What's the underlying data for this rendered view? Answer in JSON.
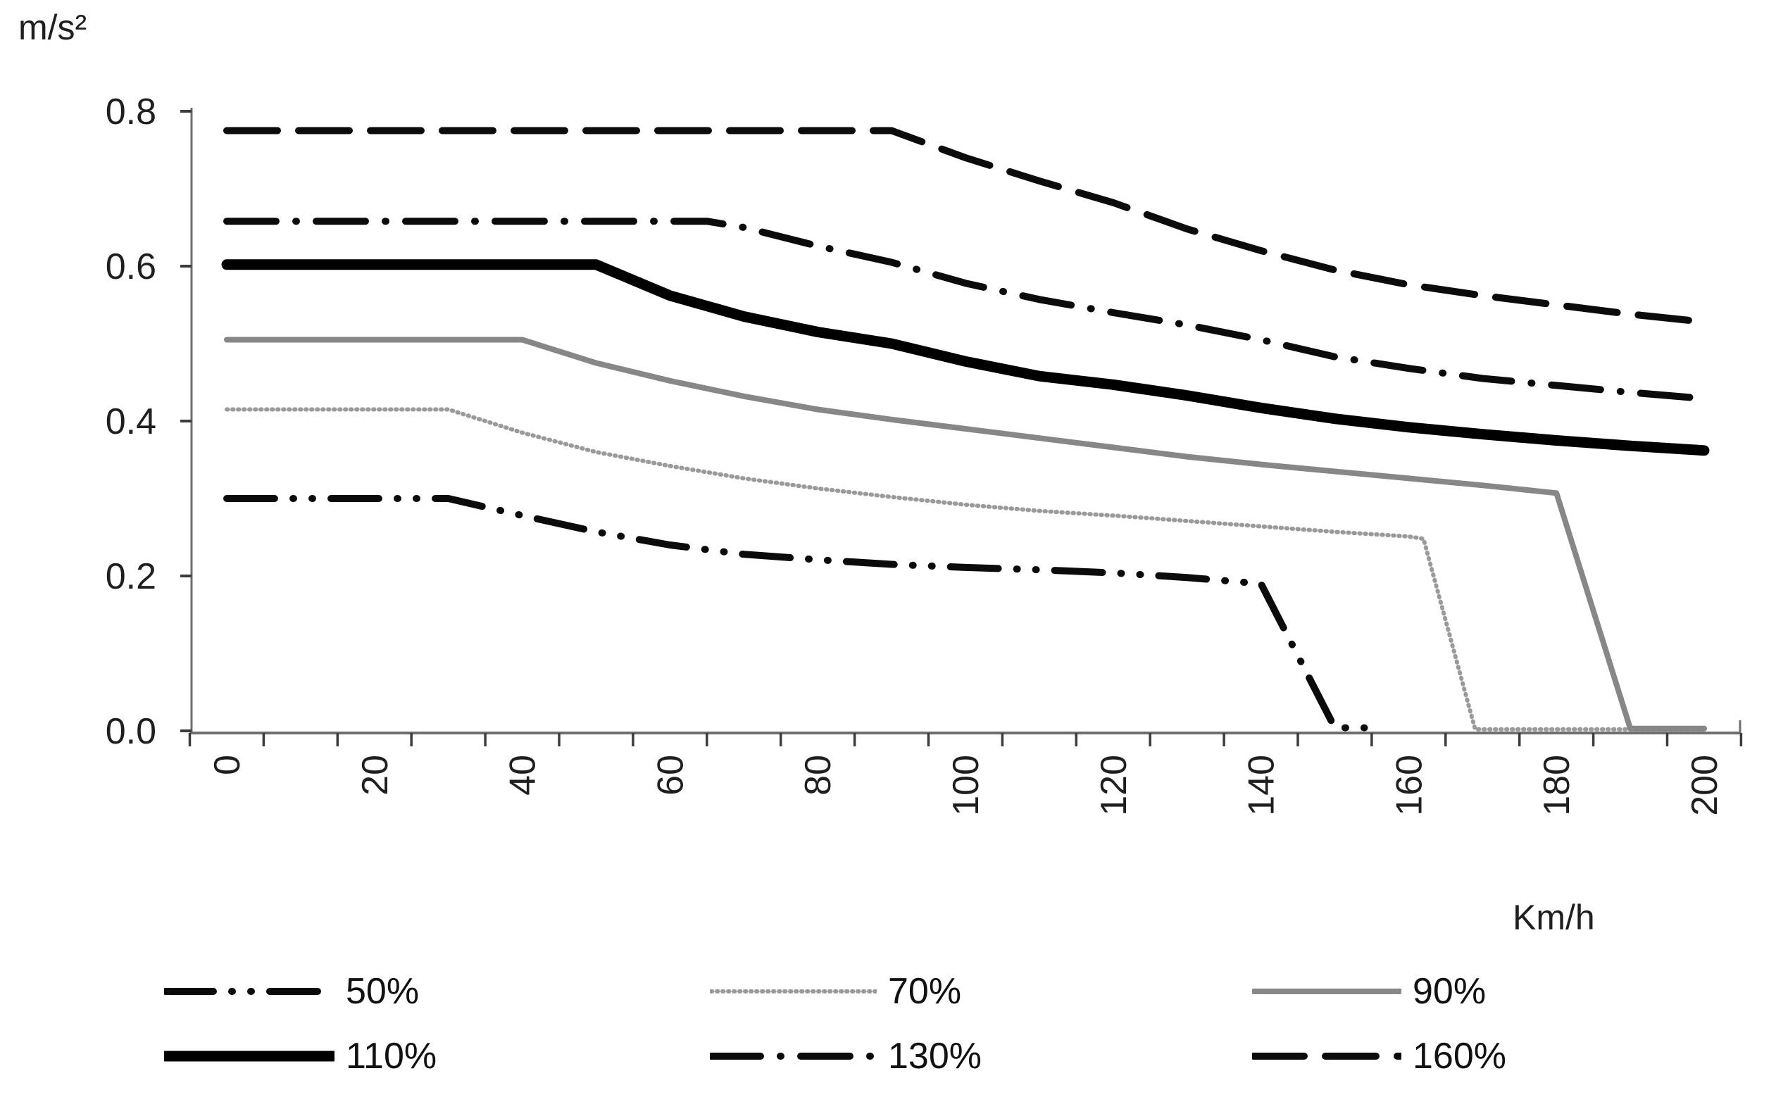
{
  "chart_data": {
    "type": "line",
    "title": "",
    "y_unit_label": "m/s²",
    "x_unit_label": "Km/h",
    "xlim": [
      0,
      200
    ],
    "ylim": [
      0.0,
      0.8
    ],
    "grid": false,
    "legend_position": "bottom",
    "x_tick_labels": [
      "0",
      "20",
      "40",
      "60",
      "80",
      "100",
      "120",
      "140",
      "160",
      "180",
      "200"
    ],
    "x_tick_values": [
      0,
      20,
      40,
      60,
      80,
      100,
      120,
      140,
      160,
      180,
      200
    ],
    "x_minor_tick_step": 10,
    "y_tick_labels": [
      "0.0",
      "0.2",
      "0.4",
      "0.6",
      "0.8"
    ],
    "y_tick_values": [
      0.0,
      0.2,
      0.4,
      0.6,
      0.8
    ],
    "series": [
      {
        "name": "50%",
        "style": "dash-dot-dot",
        "color": "#0b0b0b",
        "width": 10,
        "points": [
          [
            0,
            0.3
          ],
          [
            30,
            0.3
          ],
          [
            40,
            0.278
          ],
          [
            50,
            0.257
          ],
          [
            60,
            0.24
          ],
          [
            70,
            0.228
          ],
          [
            80,
            0.221
          ],
          [
            90,
            0.215
          ],
          [
            100,
            0.211
          ],
          [
            110,
            0.208
          ],
          [
            120,
            0.204
          ],
          [
            130,
            0.198
          ],
          [
            140,
            0.19
          ],
          [
            150,
            0.004
          ],
          [
            154,
            0.004
          ]
        ]
      },
      {
        "name": "70%",
        "style": "dotted",
        "color": "#9a9a9a",
        "width": 6,
        "points": [
          [
            0,
            0.415
          ],
          [
            30,
            0.415
          ],
          [
            40,
            0.385
          ],
          [
            50,
            0.36
          ],
          [
            60,
            0.342
          ],
          [
            70,
            0.326
          ],
          [
            80,
            0.313
          ],
          [
            90,
            0.302
          ],
          [
            100,
            0.292
          ],
          [
            110,
            0.284
          ],
          [
            120,
            0.278
          ],
          [
            130,
            0.271
          ],
          [
            140,
            0.264
          ],
          [
            150,
            0.257
          ],
          [
            160,
            0.251
          ],
          [
            162,
            0.248
          ],
          [
            169,
            0.002
          ],
          [
            200,
            0.002
          ]
        ]
      },
      {
        "name": "90%",
        "style": "solid",
        "color": "#878787",
        "width": 8,
        "points": [
          [
            0,
            0.505
          ],
          [
            40,
            0.505
          ],
          [
            50,
            0.475
          ],
          [
            60,
            0.452
          ],
          [
            70,
            0.432
          ],
          [
            80,
            0.415
          ],
          [
            90,
            0.402
          ],
          [
            100,
            0.39
          ],
          [
            110,
            0.378
          ],
          [
            120,
            0.366
          ],
          [
            130,
            0.354
          ],
          [
            140,
            0.344
          ],
          [
            150,
            0.335
          ],
          [
            160,
            0.326
          ],
          [
            170,
            0.317
          ],
          [
            180,
            0.307
          ],
          [
            190,
            0.003
          ],
          [
            200,
            0.003
          ]
        ]
      },
      {
        "name": "110%",
        "style": "solid",
        "color": "#000000",
        "width": 15,
        "points": [
          [
            0,
            0.602
          ],
          [
            50,
            0.602
          ],
          [
            60,
            0.562
          ],
          [
            70,
            0.535
          ],
          [
            80,
            0.515
          ],
          [
            90,
            0.5
          ],
          [
            100,
            0.477
          ],
          [
            110,
            0.458
          ],
          [
            120,
            0.447
          ],
          [
            130,
            0.433
          ],
          [
            140,
            0.417
          ],
          [
            150,
            0.403
          ],
          [
            160,
            0.392
          ],
          [
            170,
            0.383
          ],
          [
            180,
            0.375
          ],
          [
            190,
            0.368
          ],
          [
            200,
            0.362
          ]
        ]
      },
      {
        "name": "130%",
        "style": "dash-dot",
        "color": "#0b0b0b",
        "width": 10,
        "points": [
          [
            0,
            0.658
          ],
          [
            65,
            0.658
          ],
          [
            70,
            0.65
          ],
          [
            80,
            0.626
          ],
          [
            90,
            0.605
          ],
          [
            100,
            0.578
          ],
          [
            110,
            0.557
          ],
          [
            120,
            0.54
          ],
          [
            130,
            0.524
          ],
          [
            140,
            0.505
          ],
          [
            150,
            0.483
          ],
          [
            160,
            0.468
          ],
          [
            170,
            0.455
          ],
          [
            180,
            0.446
          ],
          [
            190,
            0.437
          ],
          [
            200,
            0.429
          ]
        ]
      },
      {
        "name": "160%",
        "style": "long-dash",
        "color": "#0b0b0b",
        "width": 10,
        "points": [
          [
            0,
            0.775
          ],
          [
            90,
            0.775
          ],
          [
            100,
            0.74
          ],
          [
            110,
            0.71
          ],
          [
            120,
            0.682
          ],
          [
            130,
            0.648
          ],
          [
            140,
            0.62
          ],
          [
            150,
            0.595
          ],
          [
            160,
            0.576
          ],
          [
            170,
            0.562
          ],
          [
            180,
            0.55
          ],
          [
            190,
            0.538
          ],
          [
            200,
            0.528
          ]
        ]
      }
    ],
    "legend": {
      "rows": [
        [
          "50%",
          "70%",
          "90%"
        ],
        [
          "110%",
          "130%",
          "160%"
        ]
      ]
    }
  }
}
